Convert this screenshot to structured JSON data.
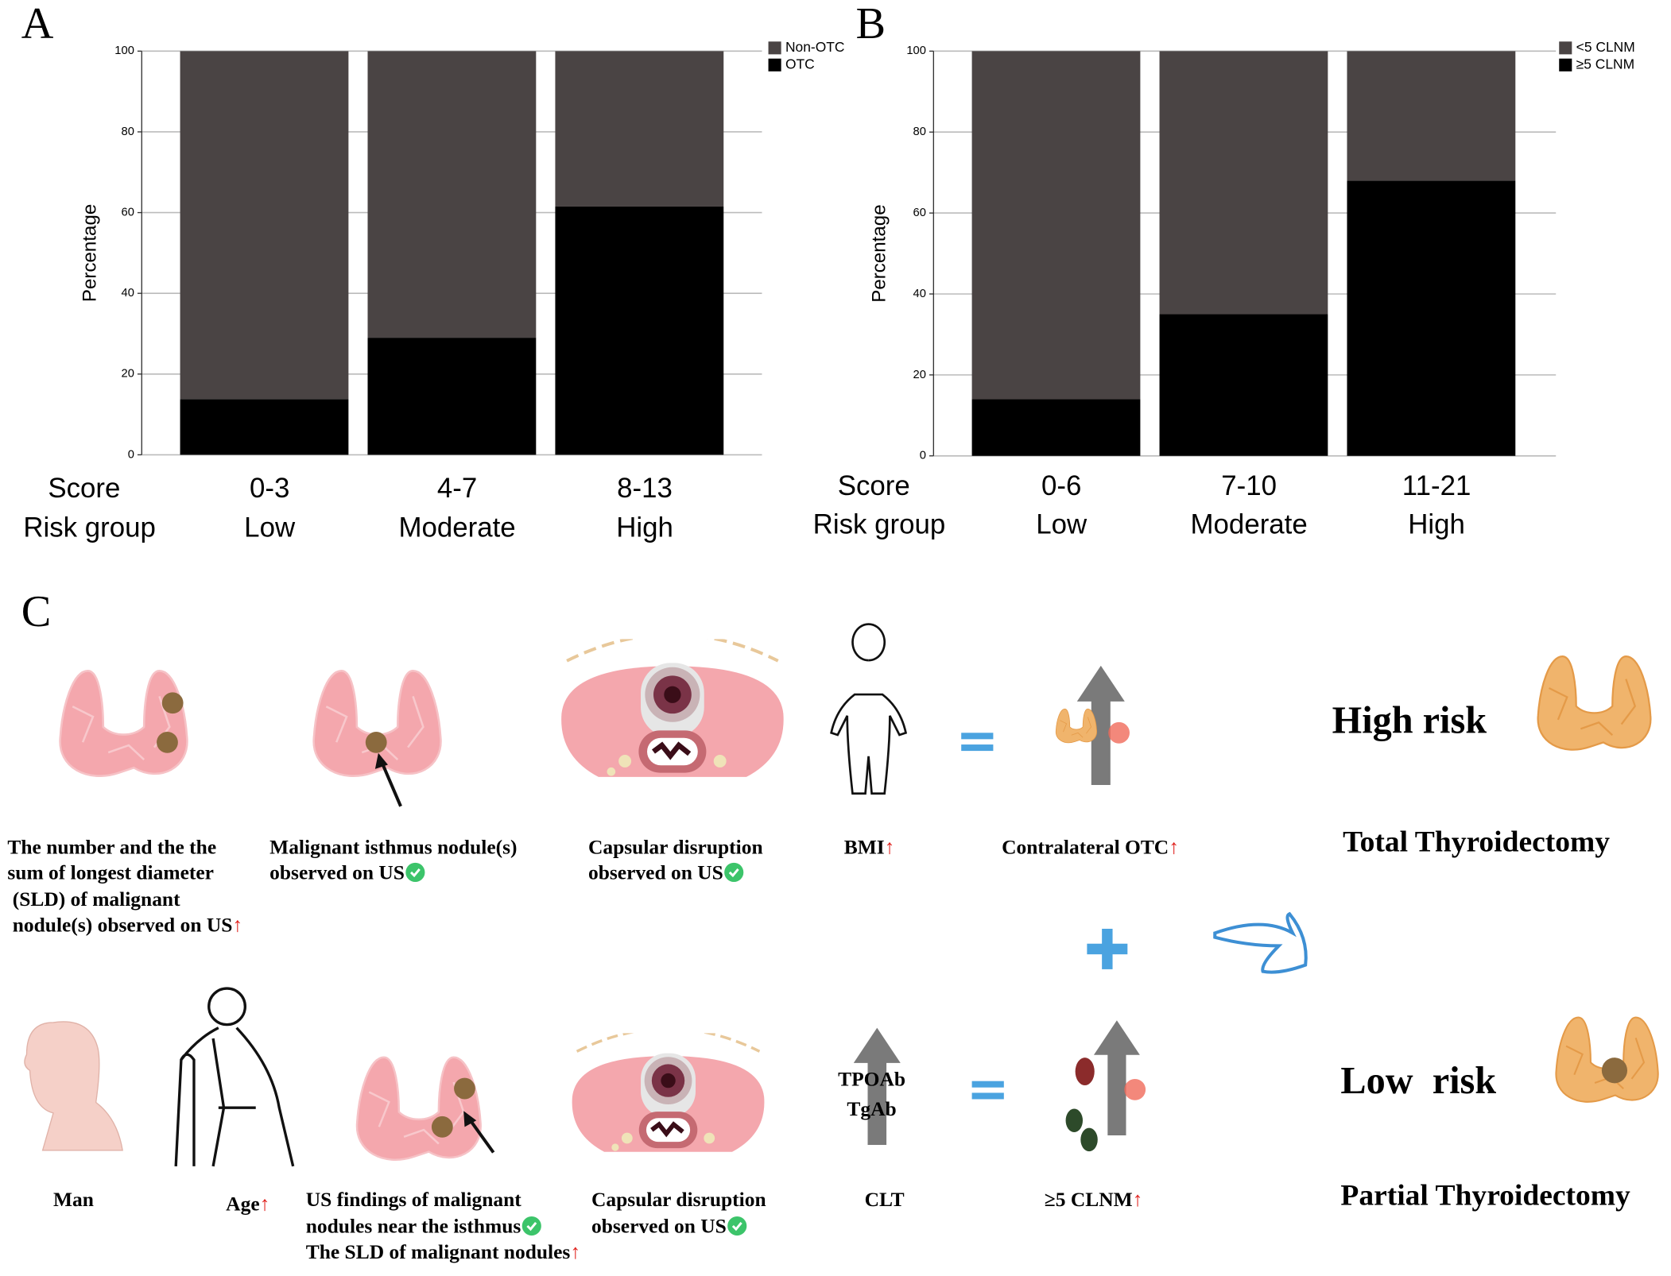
{
  "chart_data": [
    {
      "type": "bar",
      "stacked": true,
      "panel": "A",
      "ylabel": "Percentage",
      "row_labels": [
        "Score",
        "Risk group"
      ],
      "categories": [
        "0-3",
        "4-7",
        "8-13"
      ],
      "risk_groups": [
        "Low",
        "Moderate",
        "High"
      ],
      "series": [
        {
          "name": "Non-OTC",
          "color": "#4a4444",
          "values": [
            86.2,
            71,
            38.5
          ]
        },
        {
          "name": "OTC",
          "color": "#000000",
          "values": [
            13.8,
            29,
            61.5
          ]
        }
      ],
      "ylim": [
        0,
        100
      ],
      "yticks": [
        0,
        20,
        40,
        60,
        80,
        100
      ],
      "grid": true,
      "legend": "top-right"
    },
    {
      "type": "bar",
      "stacked": true,
      "panel": "B",
      "ylabel": "Percentage",
      "row_labels": [
        "Score",
        "Risk group"
      ],
      "categories": [
        "0-6",
        "7-10",
        "11-21"
      ],
      "risk_groups": [
        "Low",
        "Moderate",
        "High"
      ],
      "series": [
        {
          "name": "<5 CLNM",
          "color": "#4a4444",
          "values": [
            86,
            65,
            32
          ]
        },
        {
          "name": "≥5 CLNM",
          "color": "#000000",
          "values": [
            14,
            35,
            68
          ]
        }
      ],
      "ylim": [
        0,
        100
      ],
      "yticks": [
        0,
        20,
        40,
        60,
        80,
        100
      ],
      "grid": true,
      "legend": "top-right"
    }
  ],
  "panel_c": {
    "label": "C",
    "up": "↑",
    "high": {
      "risk": "High risk",
      "treatment": "Total Thyroidectomy",
      "factors": [
        {
          "lines": [
            "The number and the the",
            "sum of  longest diameter",
            " (SLD) of malignant",
            " nodule(s) observed on US"
          ]
        },
        {
          "lines": [
            "Malignant isthmus nodule(s)",
            "observed on US"
          ]
        },
        {
          "lines": [
            "Capsular disruption",
            "observed on US"
          ]
        },
        {
          "lines": [
            "BMI"
          ]
        },
        {
          "lines": [
            "Contralateral OTC"
          ]
        }
      ]
    },
    "low": {
      "risk": "Low  risk",
      "treatment": "Partial Thyroidectomy",
      "arrow_text": [
        "TPOAb",
        "TgAb"
      ],
      "factors": [
        {
          "lines": [
            "Man"
          ]
        },
        {
          "lines": [
            "Age"
          ]
        },
        {
          "lines": [
            "US findings of malignant",
            "nodules near the isthmus",
            "The SLD of malignant nodules"
          ]
        },
        {
          "lines": [
            "Capsular disruption",
            "observed on US"
          ]
        },
        {
          "lines": [
            "CLT"
          ]
        },
        {
          "lines": [
            "≥5 CLNM"
          ]
        }
      ]
    }
  }
}
